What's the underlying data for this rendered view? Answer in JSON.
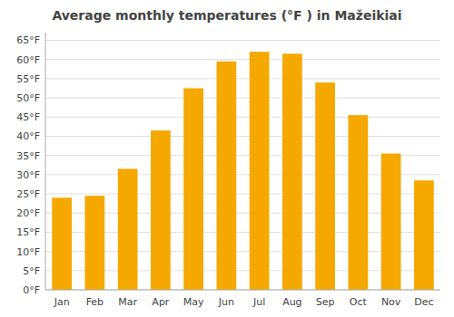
{
  "chart_data": {
    "type": "bar",
    "title": "Average monthly temperatures (°F ) in Mažeikiai",
    "categories": [
      "Jan",
      "Feb",
      "Mar",
      "Apr",
      "May",
      "Jun",
      "Jul",
      "Aug",
      "Sep",
      "Oct",
      "Nov",
      "Dec"
    ],
    "values": [
      24.0,
      24.5,
      31.5,
      41.5,
      52.5,
      59.5,
      62.0,
      61.5,
      54.0,
      45.5,
      35.5,
      28.5
    ],
    "color": "#F5A800",
    "ylim": [
      0,
      67
    ],
    "yticks": [
      {
        "value": 0,
        "label": "0°F"
      },
      {
        "value": 5,
        "label": "5°F"
      },
      {
        "value": 10,
        "label": "10°F"
      },
      {
        "value": 15,
        "label": "15°F"
      },
      {
        "value": 20,
        "label": "20°F"
      },
      {
        "value": 25,
        "label": "25°F"
      },
      {
        "value": 30,
        "label": "30°F"
      },
      {
        "value": 35,
        "label": "35°F"
      },
      {
        "value": 40,
        "label": "40°F"
      },
      {
        "value": 45,
        "label": "45°F"
      },
      {
        "value": 50,
        "label": "50°F"
      },
      {
        "value": 55,
        "label": "55°F"
      },
      {
        "value": 60,
        "label": "60°F"
      },
      {
        "value": 65,
        "label": "65°F"
      }
    ],
    "grid": true
  }
}
